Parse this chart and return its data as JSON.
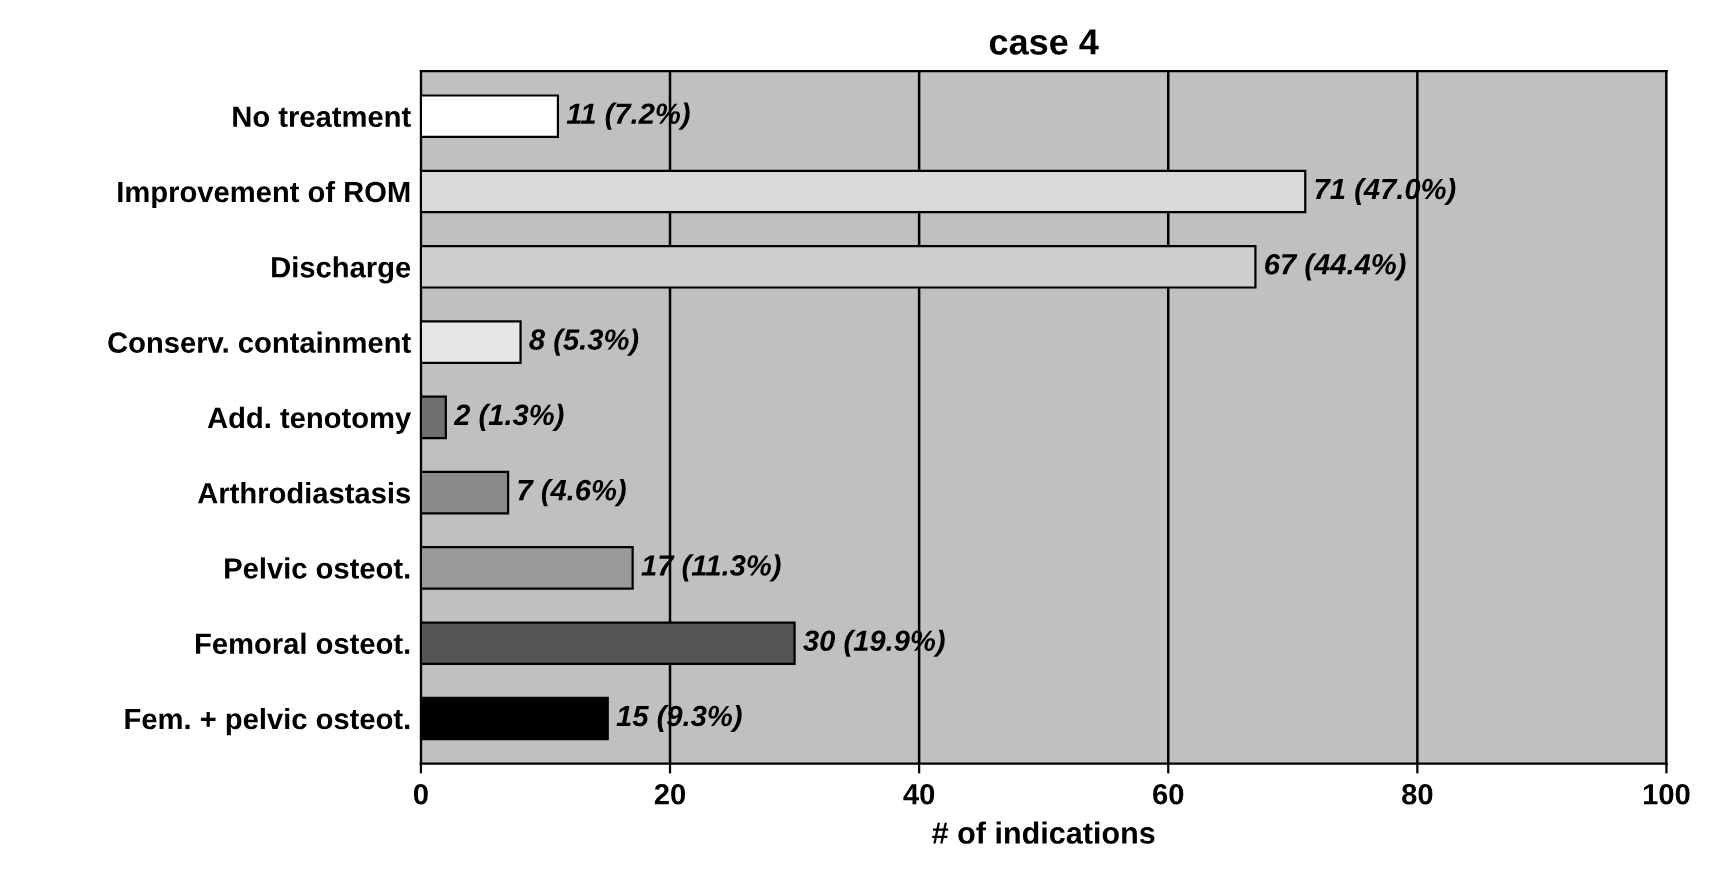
{
  "chart_data": {
    "type": "bar",
    "orientation": "horizontal",
    "title": "case 4",
    "xlabel": "# of indications",
    "categories": [
      "No treatment",
      "Improvement of ROM",
      "Discharge",
      "Conserv. containment",
      "Add. tenotomy",
      "Arthrodiastasis",
      "Pelvic osteot.",
      "Femoral osteot.",
      "Fem. + pelvic osteot."
    ],
    "values": [
      11,
      71,
      67,
      8,
      2,
      7,
      17,
      30,
      15
    ],
    "value_labels": [
      "11 (7.2%)",
      "71 (47.0%)",
      "67 (44.4%)",
      "8 (5.3%)",
      "2 (1.3%)",
      "7 (4.6%)",
      "17 (11.3%)",
      "30 (19.9%)",
      "15 (9.3%)"
    ],
    "colors": [
      "#ffffff",
      "#d9d9d9",
      "#cfcfcf",
      "#e6e6e6",
      "#707070",
      "#8a8a8a",
      "#9a9a9a",
      "#555555",
      "#000000"
    ],
    "xlim": [
      0,
      100
    ],
    "xticks": [
      0,
      20,
      40,
      60,
      80,
      100
    ],
    "grid": "x",
    "legend": false
  }
}
